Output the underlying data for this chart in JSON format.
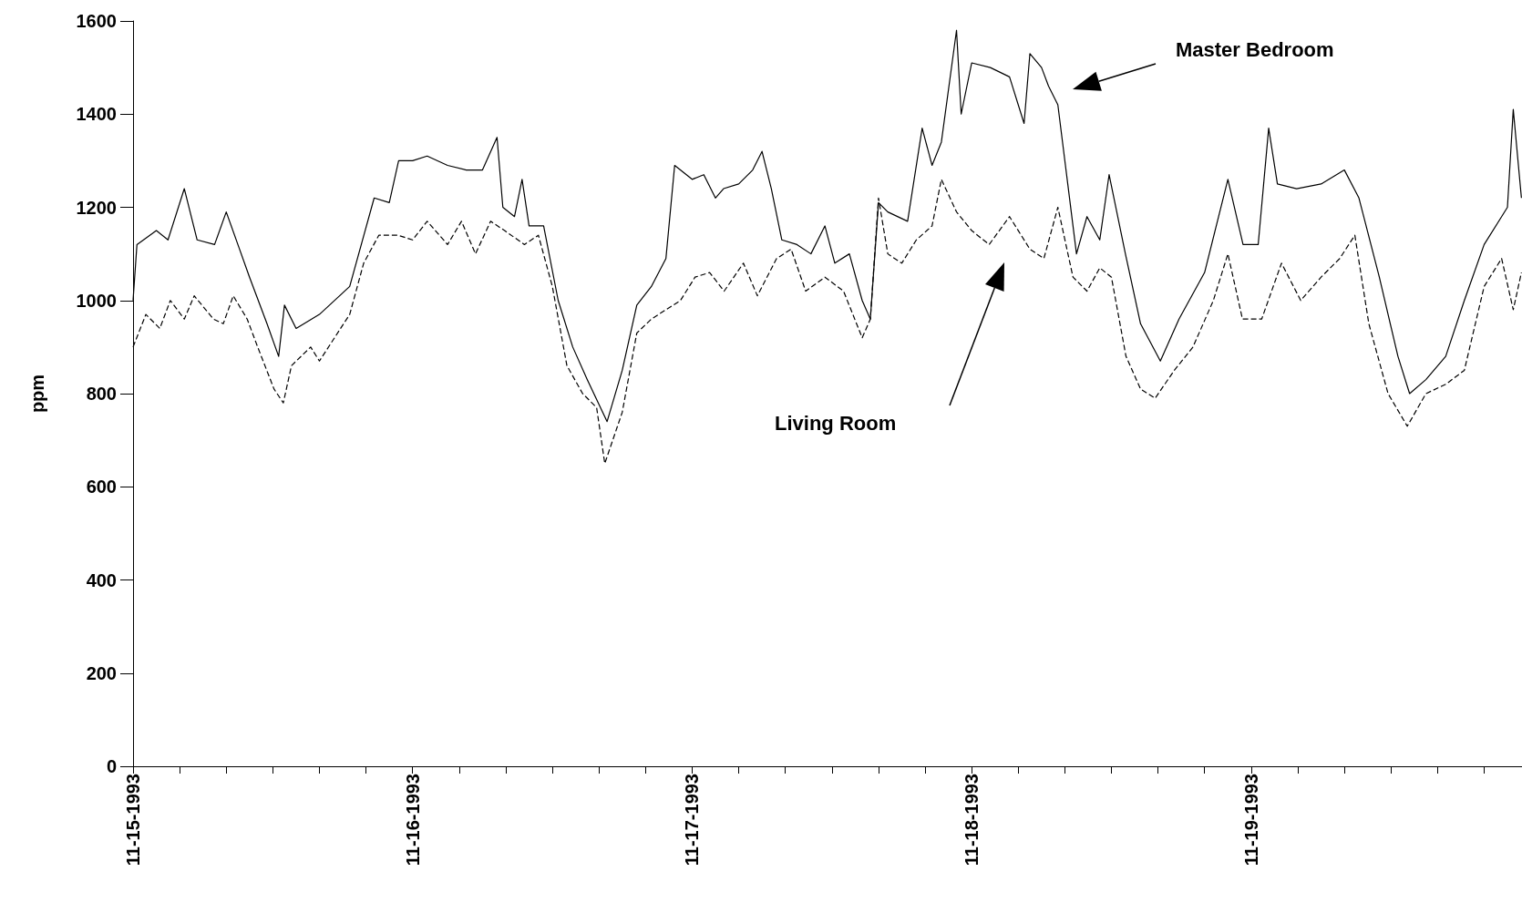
{
  "chart_data": {
    "type": "line",
    "ylabel": "ppm",
    "annotations": [
      "Master Bedroom",
      "Living Room"
    ],
    "xlim": [
      "1993-11-15T00:00",
      "1993-11-19T23:15"
    ],
    "ylim": [
      0,
      1600
    ],
    "yticks": [
      0,
      200,
      400,
      600,
      800,
      1000,
      1200,
      1400,
      1600
    ],
    "xticks": [
      {
        "value": "1993-11-15T00:00",
        "label": "11-15-1993"
      },
      {
        "value": "1993-11-15T04:00",
        "label": null
      },
      {
        "value": "1993-11-15T08:00",
        "label": null
      },
      {
        "value": "1993-11-15T12:00",
        "label": null
      },
      {
        "value": "1993-11-15T16:00",
        "label": null
      },
      {
        "value": "1993-11-15T20:00",
        "label": null
      },
      {
        "value": "1993-11-16T00:00",
        "label": "11-16-1993"
      },
      {
        "value": "1993-11-16T04:00",
        "label": null
      },
      {
        "value": "1993-11-16T08:00",
        "label": null
      },
      {
        "value": "1993-11-16T12:00",
        "label": null
      },
      {
        "value": "1993-11-16T16:00",
        "label": null
      },
      {
        "value": "1993-11-16T20:00",
        "label": null
      },
      {
        "value": "1993-11-17T00:00",
        "label": "11-17-1993"
      },
      {
        "value": "1993-11-17T04:00",
        "label": null
      },
      {
        "value": "1993-11-17T08:00",
        "label": null
      },
      {
        "value": "1993-11-17T12:00",
        "label": null
      },
      {
        "value": "1993-11-17T16:00",
        "label": null
      },
      {
        "value": "1993-11-17T20:00",
        "label": null
      },
      {
        "value": "1993-11-18T00:00",
        "label": "11-18-1993"
      },
      {
        "value": "1993-11-18T04:00",
        "label": null
      },
      {
        "value": "1993-11-18T08:00",
        "label": null
      },
      {
        "value": "1993-11-18T12:00",
        "label": null
      },
      {
        "value": "1993-11-18T16:00",
        "label": null
      },
      {
        "value": "1993-11-18T20:00",
        "label": null
      },
      {
        "value": "1993-11-19T00:00",
        "label": "11-19-1993"
      },
      {
        "value": "1993-11-19T04:00",
        "label": null
      },
      {
        "value": "1993-11-19T08:00",
        "label": null
      },
      {
        "value": "1993-11-19T12:00",
        "label": null
      },
      {
        "value": "1993-11-19T16:00",
        "label": null
      },
      {
        "value": "1993-11-19T20:00",
        "label": null
      }
    ],
    "series": [
      {
        "color": "#000000",
        "line_style": "solid",
        "x": [
          "1993-11-15T00:00",
          "1993-11-15T00:20",
          "1993-11-15T02:00",
          "1993-11-15T03:00",
          "1993-11-15T04:24",
          "1993-11-15T05:30",
          "1993-11-15T07:00",
          "1993-11-15T08:00",
          "1993-11-15T09:00",
          "1993-11-15T10:00",
          "1993-11-15T11:30",
          "1993-11-15T12:30",
          "1993-11-15T13:00",
          "1993-11-15T14:00",
          "1993-11-15T16:00",
          "1993-11-15T18:36",
          "1993-11-15T20:42",
          "1993-11-15T22:00",
          "1993-11-15T22:48",
          "1993-11-16T00:00",
          "1993-11-16T01:15",
          "1993-11-16T03:00",
          "1993-11-16T04:36",
          "1993-11-16T06:00",
          "1993-11-16T07:15",
          "1993-11-16T07:45",
          "1993-11-16T08:45",
          "1993-11-16T09:24",
          "1993-11-16T10:00",
          "1993-11-16T11:15",
          "1993-11-16T12:30",
          "1993-11-16T13:45",
          "1993-11-16T15:00",
          "1993-11-16T16:42",
          "1993-11-16T18:00",
          "1993-11-16T19:15",
          "1993-11-16T20:30",
          "1993-11-16T21:45",
          "1993-11-16T22:30",
          "1993-11-17T00:00",
          "1993-11-17T01:00",
          "1993-11-17T02:00",
          "1993-11-17T02:42",
          "1993-11-17T04:00",
          "1993-11-17T05:12",
          "1993-11-17T06:00",
          "1993-11-17T06:48",
          "1993-11-17T07:42",
          "1993-11-17T09:00",
          "1993-11-17T10:12",
          "1993-11-17T11:24",
          "1993-11-17T12:15",
          "1993-11-17T13:30",
          "1993-11-17T14:36",
          "1993-11-17T15:18",
          "1993-11-17T16:00",
          "1993-11-17T16:48",
          "1993-11-17T18:30",
          "1993-11-17T19:45",
          "1993-11-17T20:36",
          "1993-11-17T21:24",
          "1993-11-17T22:42",
          "1993-11-17T23:06",
          "1993-11-18T00:00",
          "1993-11-18T01:36",
          "1993-11-18T03:15",
          "1993-11-18T04:30",
          "1993-11-18T05:00",
          "1993-11-18T06:00",
          "1993-11-18T06:36",
          "1993-11-18T07:24",
          "1993-11-18T08:15",
          "1993-11-18T09:00",
          "1993-11-18T09:54",
          "1993-11-18T11:00",
          "1993-11-18T11:48",
          "1993-11-18T13:12",
          "1993-11-18T14:30",
          "1993-11-18T16:12",
          "1993-11-18T17:48",
          "1993-11-18T20:00",
          "1993-11-18T22:00",
          "1993-11-18T23:18",
          "1993-11-19T00:36",
          "1993-11-19T01:30",
          "1993-11-19T02:15",
          "1993-11-19T03:54",
          "1993-11-19T06:00",
          "1993-11-19T08:00",
          "1993-11-19T09:15",
          "1993-11-19T11:00",
          "1993-11-19T12:36",
          "1993-11-19T13:36",
          "1993-11-19T15:00",
          "1993-11-19T16:42",
          "1993-11-19T18:18",
          "1993-11-19T20:00",
          "1993-11-19T21:30",
          "1993-11-19T22:00",
          "1993-11-19T22:30",
          "1993-11-19T23:12"
        ],
        "values": [
          1000,
          1120,
          1150,
          1130,
          1240,
          1130,
          1120,
          1190,
          1120,
          1050,
          950,
          880,
          990,
          940,
          970,
          1030,
          1220,
          1210,
          1300,
          1300,
          1310,
          1290,
          1280,
          1280,
          1350,
          1200,
          1180,
          1260,
          1160,
          1160,
          1000,
          900,
          830,
          740,
          850,
          990,
          1030,
          1090,
          1290,
          1260,
          1270,
          1220,
          1240,
          1250,
          1280,
          1320,
          1240,
          1130,
          1120,
          1100,
          1160,
          1080,
          1100,
          1000,
          960,
          1210,
          1190,
          1170,
          1370,
          1290,
          1340,
          1580,
          1400,
          1510,
          1500,
          1480,
          1380,
          1530,
          1500,
          1460,
          1420,
          1250,
          1100,
          1180,
          1130,
          1270,
          1100,
          950,
          870,
          960,
          1060,
          1260,
          1120,
          1120,
          1370,
          1250,
          1240,
          1250,
          1280,
          1220,
          1050,
          880,
          800,
          830,
          880,
          1000,
          1120,
          1180,
          1200,
          1410,
          1220
        ]
      },
      {
        "color": "#000000",
        "line_style": "dashed",
        "x": [
          "1993-11-15T00:00",
          "1993-11-15T01:06",
          "1993-11-15T02:18",
          "1993-11-15T03:12",
          "1993-11-15T04:24",
          "1993-11-15T05:15",
          "1993-11-15T06:54",
          "1993-11-15T07:45",
          "1993-11-15T08:36",
          "1993-11-15T09:48",
          "1993-11-15T10:42",
          "1993-11-15T12:06",
          "1993-11-15T12:54",
          "1993-11-15T13:36",
          "1993-11-15T15:15",
          "1993-11-15T16:00",
          "1993-11-15T17:18",
          "1993-11-15T18:36",
          "1993-11-15T19:48",
          "1993-11-15T21:06",
          "1993-11-15T22:45",
          "1993-11-16T00:00",
          "1993-11-16T01:15",
          "1993-11-16T03:00",
          "1993-11-16T04:12",
          "1993-11-16T05:24",
          "1993-11-16T06:42",
          "1993-11-16T07:54",
          "1993-11-16T09:36",
          "1993-11-16T10:48",
          "1993-11-16T12:00",
          "1993-11-16T13:15",
          "1993-11-16T14:36",
          "1993-11-16T15:48",
          "1993-11-16T16:30",
          "1993-11-16T18:00",
          "1993-11-16T19:15",
          "1993-11-16T20:30",
          "1993-11-16T21:45",
          "1993-11-16T23:00",
          "1993-11-17T00:15",
          "1993-11-17T01:30",
          "1993-11-17T02:45",
          "1993-11-17T04:24",
          "1993-11-17T05:36",
          "1993-11-17T07:15",
          "1993-11-17T08:30",
          "1993-11-17T09:45",
          "1993-11-17T11:24",
          "1993-11-17T13:00",
          "1993-11-17T14:36",
          "1993-11-17T15:18",
          "1993-11-17T16:00",
          "1993-11-17T16:48",
          "1993-11-17T18:00",
          "1993-11-17T19:15",
          "1993-11-17T20:36",
          "1993-11-17T21:24",
          "1993-11-17T22:42",
          "1993-11-18T00:00",
          "1993-11-18T01:30",
          "1993-11-18T03:15",
          "1993-11-18T05:00",
          "1993-11-18T06:12",
          "1993-11-18T07:24",
          "1993-11-18T08:42",
          "1993-11-18T09:54",
          "1993-11-18T11:00",
          "1993-11-18T12:00",
          "1993-11-18T13:15",
          "1993-11-18T14:30",
          "1993-11-18T15:45",
          "1993-11-18T17:24",
          "1993-11-18T19:00",
          "1993-11-18T20:45",
          "1993-11-18T22:00",
          "1993-11-18T23:15",
          "1993-11-19T00:54",
          "1993-11-19T02:36",
          "1993-11-19T04:15",
          "1993-11-19T06:00",
          "1993-11-19T07:36",
          "1993-11-19T08:54",
          "1993-11-19T10:06",
          "1993-11-19T11:45",
          "1993-11-19T13:24",
          "1993-11-19T15:00",
          "1993-11-19T16:42",
          "1993-11-19T18:18",
          "1993-11-19T20:00",
          "1993-11-19T21:30",
          "1993-11-19T22:30",
          "1993-11-19T23:12"
        ],
        "values": [
          900,
          970,
          940,
          1000,
          960,
          1010,
          960,
          950,
          1010,
          960,
          900,
          810,
          780,
          860,
          900,
          870,
          920,
          970,
          1080,
          1140,
          1140,
          1130,
          1170,
          1120,
          1170,
          1100,
          1170,
          1150,
          1120,
          1140,
          1030,
          860,
          800,
          770,
          650,
          760,
          930,
          960,
          980,
          1000,
          1050,
          1060,
          1020,
          1080,
          1010,
          1090,
          1110,
          1020,
          1050,
          1020,
          920,
          960,
          1220,
          1100,
          1080,
          1130,
          1160,
          1260,
          1190,
          1150,
          1120,
          1180,
          1110,
          1090,
          1200,
          1050,
          1020,
          1070,
          1050,
          880,
          810,
          790,
          850,
          900,
          1000,
          1100,
          960,
          960,
          1080,
          1000,
          1050,
          1090,
          1140,
          950,
          800,
          730,
          800,
          820,
          850,
          1030,
          1090,
          980,
          1060
        ]
      }
    ]
  }
}
